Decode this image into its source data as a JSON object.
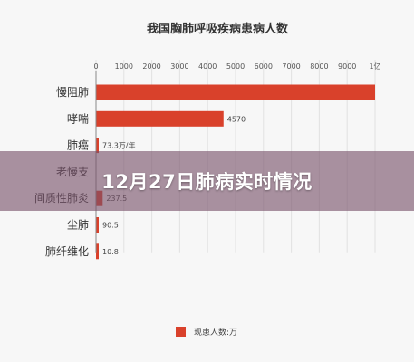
{
  "colors": {
    "bar": "#d9412b",
    "axis": "#888888",
    "grid": "#e2e2e2"
  },
  "overlay": {
    "headline": "12月27日肺病实时情况"
  },
  "chart_data": {
    "type": "bar",
    "orientation": "horizontal",
    "title": "我国胸肺呼吸疾病患病人数",
    "categories": [
      "慢阻肺",
      "哮喘",
      "肺癌",
      "老慢支",
      "间质性肺炎",
      "尘肺",
      "肺纤维化"
    ],
    "series": [
      {
        "name": "现患人数:万",
        "values": [
          10000,
          4570,
          73.3,
          null,
          237.5,
          90.5,
          10.8
        ],
        "labels": [
          "",
          "4570",
          "73.3万/年",
          "",
          "237.5",
          "90.5",
          "10.8"
        ]
      }
    ],
    "x_ticks": [
      "0",
      "1000",
      "2000",
      "3000",
      "4000",
      "5000",
      "6000",
      "7000",
      "8000",
      "9000",
      "1亿"
    ],
    "xlim": [
      0,
      10000
    ],
    "grid": true,
    "legend_position": "bottom-center"
  }
}
